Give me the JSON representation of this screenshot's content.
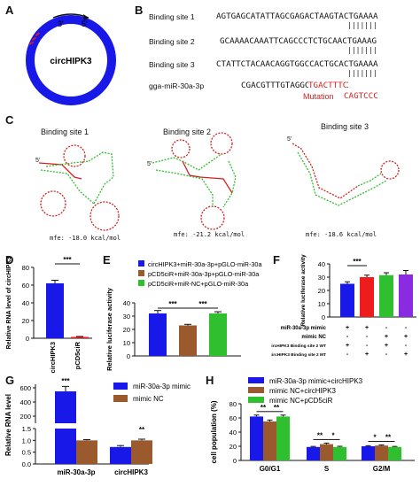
{
  "panels": {
    "A": {
      "letter": "A",
      "circle_label": "circHIPK3",
      "arrow_3": "3'",
      "arrow_5": "5'"
    },
    "B": {
      "letter": "B",
      "rows": [
        {
          "label": "Binding site 1",
          "seq": "AGTGAGCATATTAGCGAGACTAAGTACTGAAAA"
        },
        {
          "label": "Binding site 2",
          "seq": "GCAAAACAAATTCAGCCCTCTGCAACTGAAAG"
        },
        {
          "label": "Binding site 3",
          "seq": "CTATTCTACAACAGGTGGCCACTGCACTGAAAA"
        },
        {
          "label": "gga-miR-30a-3p",
          "seq": "CGACGTTTGTAGGCTGACTTTC"
        }
      ],
      "mutation_label": "Mutation",
      "mutation_seq": "CAGTCCC",
      "miR_highlight": "TGACTTTC"
    },
    "C": {
      "letter": "C",
      "sites": [
        {
          "title": "Binding site 1",
          "mfe": "mfe: -18.0 kcal/mol",
          "five": "5'"
        },
        {
          "title": "Binding site 2",
          "mfe": "mfe: -21.2 kcal/mol",
          "five": "5'"
        },
        {
          "title": "Binding site 3",
          "mfe": "mfe: -18.6 kcal/mol",
          "five": "5'"
        }
      ]
    },
    "D": {
      "letter": "D"
    },
    "E": {
      "letter": "E"
    },
    "F": {
      "letter": "F"
    },
    "G": {
      "letter": "G"
    },
    "H": {
      "letter": "H"
    }
  },
  "colors": {
    "blue": "#1818e8",
    "brown": "#9b5a2e",
    "green": "#2fbf2f",
    "purple": "#8a2be2",
    "red": "#ee1c1c",
    "mutation": "#d42020"
  },
  "chart_data": [
    {
      "id": "D",
      "type": "bar",
      "categories": [
        "circHIPK3",
        "pCD5ciR"
      ],
      "values": [
        62,
        1.5
      ],
      "errors": [
        3.5,
        0.5
      ],
      "colors": [
        "#1818e8",
        "#ee1c1c"
      ],
      "ylabel": "Relative RNA level of circHIPK3",
      "ylim": [
        0,
        80
      ],
      "yticks": [
        0,
        20,
        40,
        60,
        80
      ],
      "sig": [
        {
          "from": 0,
          "to": 1,
          "label": "***"
        }
      ]
    },
    {
      "id": "E",
      "type": "bar",
      "categories": [
        "circHIPK3+miR-30a-3p+pGLO-miR-30a",
        "pCD5ciR+miR-30a-3p+pGLO-miR-30a",
        "pCD5ciR+miR-NC+pGLO-miR-30a"
      ],
      "values": [
        32,
        23,
        32
      ],
      "errors": [
        2.2,
        0.8,
        1.3
      ],
      "colors": [
        "#1818e8",
        "#9b5a2e",
        "#2fbf2f"
      ],
      "ylabel": "Relative luciferase activity",
      "ylim": [
        0,
        40
      ],
      "yticks": [
        0,
        10,
        20,
        30,
        40
      ],
      "legend": [
        "circHIPK3+miR-30a-3p+pGLO-miR-30a",
        "pCD5ciR+miR-30a-3p+pGLO-miR-30a",
        "pCD5ciR+miR-NC+pGLO-miR-30a"
      ],
      "sig": [
        {
          "from": 0,
          "to": 1,
          "label": "***"
        },
        {
          "from": 1,
          "to": 2,
          "label": "***"
        }
      ]
    },
    {
      "id": "F",
      "type": "bar",
      "values": [
        25,
        30,
        31.5,
        32
      ],
      "errors": [
        1.5,
        1.5,
        1.8,
        3
      ],
      "colors": [
        "#1818e8",
        "#ee1c1c",
        "#2fbf2f",
        "#8a2be2"
      ],
      "ylabel": "Relative luciferase activity",
      "ylim": [
        0,
        40
      ],
      "yticks": [
        0,
        10,
        20,
        30,
        40
      ],
      "sig": [
        {
          "from": 0,
          "to": 1,
          "label": "***"
        }
      ],
      "table": [
        {
          "label": "miR-30a-3p mimic",
          "cells": [
            "+",
            "+",
            "-",
            "-"
          ]
        },
        {
          "label": "mimic NC",
          "cells": [
            "-",
            "-",
            "+",
            "+"
          ]
        },
        {
          "label": "circHIPK3 Binding site 2 WT",
          "cells": [
            "+",
            "-",
            "+",
            "-"
          ]
        },
        {
          "label": "circHIPK3 Binding site 2 MT",
          "cells": [
            "-",
            "+",
            "-",
            "+"
          ]
        }
      ]
    },
    {
      "id": "G",
      "type": "bar",
      "categories": [
        "miR-30a-3p",
        "circHIPK3"
      ],
      "series": [
        {
          "name": "miR-30a-3p mimic",
          "values": [
            550,
            0.72
          ],
          "errors": [
            70,
            0.06
          ]
        },
        {
          "name": "mimic NC",
          "values": [
            1.0,
            1.0
          ],
          "errors": [
            0.03,
            0.05
          ]
        }
      ],
      "colors": [
        "#1818e8",
        "#9b5a2e"
      ],
      "ylabel": "Relative RNA level",
      "yticks_upper": [
        200,
        400,
        600
      ],
      "yticks_lower": [
        0.0,
        0.5,
        1.0,
        1.5
      ],
      "sig": [
        "***",
        "**"
      ]
    },
    {
      "id": "H",
      "type": "bar",
      "categories": [
        "G0/G1",
        "S",
        "G2/M"
      ],
      "series": [
        {
          "name": "miR-30a-3p mimic+circHIPK3",
          "values": [
            62,
            19,
            20
          ],
          "errors": [
            2,
            0.8,
            0.8
          ]
        },
        {
          "name": "mimic NC+circHIPK3",
          "values": [
            55,
            23,
            21
          ],
          "errors": [
            2,
            1.5,
            0.8
          ]
        },
        {
          "name": "mimic NC+pCD5ciR",
          "values": [
            62,
            19,
            19
          ],
          "errors": [
            2,
            1,
            0.8
          ]
        }
      ],
      "colors": [
        "#1818e8",
        "#9b5a2e",
        "#2fbf2f"
      ],
      "ylabel": "cell population (%)",
      "ylim": [
        0,
        80
      ],
      "yticks": [
        0,
        20,
        40,
        60,
        80
      ],
      "sig": [
        [
          "**",
          "**"
        ],
        [
          "**",
          "*"
        ],
        [
          "*",
          "**"
        ]
      ]
    }
  ]
}
